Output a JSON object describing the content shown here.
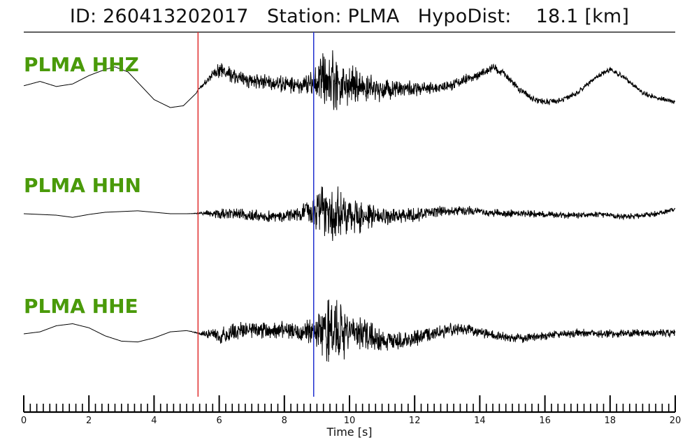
{
  "header": {
    "id_label": "ID:",
    "event_id": "260413202017",
    "station_label": "Station:",
    "station": "PLMA",
    "dist_label": "HypoDist:",
    "dist_value": "18.1",
    "dist_unit": "[km]"
  },
  "colors": {
    "trace": "#000000",
    "label": "#4a9a0a",
    "p_pick": "#e03030",
    "s_pick": "#2030d0",
    "frame": "#000000"
  },
  "chart_data": {
    "type": "line",
    "title": "ID: 260413202017   Station: PLMA   HypoDist:    18.1 [km]",
    "xlabel": "Time [s]",
    "xlim": [
      0,
      20
    ],
    "xticks": [
      0,
      2,
      4,
      6,
      8,
      10,
      12,
      14,
      16,
      18,
      20
    ],
    "minor_tick_step": 0.2,
    "grid": false,
    "picks": [
      {
        "phase": "P",
        "time": 5.35,
        "color": "#e03030"
      },
      {
        "phase": "S",
        "time": 8.9,
        "color": "#2030d0"
      }
    ],
    "series": [
      {
        "name": "PLMA HHZ",
        "x": [
          0,
          0.5,
          1,
          1.5,
          2,
          2.5,
          2.8,
          3.2,
          3.6,
          4,
          4.5,
          4.9,
          5.3,
          5.35,
          5.6,
          5.8,
          6,
          6.3,
          6.6,
          7,
          7.5,
          8,
          8.5,
          8.9,
          9.2,
          9.5,
          9.8,
          10.2,
          10.6,
          11,
          11.5,
          12,
          12.5,
          13,
          13.5,
          14,
          14.4,
          14.8,
          15.2,
          15.6,
          16,
          16.5,
          17,
          17.5,
          18,
          18.5,
          19,
          19.5,
          20
        ],
        "y": [
          0.1,
          0.22,
          0.08,
          0.15,
          0.38,
          0.55,
          0.62,
          0.48,
          0.1,
          -0.28,
          -0.5,
          -0.45,
          -0.1,
          0.0,
          0.2,
          0.45,
          0.55,
          0.45,
          0.3,
          0.25,
          0.2,
          0.15,
          0.1,
          0.2,
          0.3,
          0.25,
          0.1,
          0.1,
          0.05,
          0.0,
          0.05,
          0.0,
          0.02,
          0.1,
          0.25,
          0.4,
          0.6,
          0.4,
          0.0,
          -0.25,
          -0.35,
          -0.3,
          -0.1,
          0.3,
          0.55,
          0.3,
          -0.1,
          -0.25,
          -0.35
        ],
        "noise": [
          0,
          0,
          0,
          0,
          0,
          0,
          0,
          0,
          0,
          0,
          0,
          0,
          0,
          0.02,
          0.12,
          0.15,
          0.24,
          0.27,
          0.25,
          0.25,
          0.25,
          0.27,
          0.24,
          0.45,
          0.9,
          1.0,
          0.7,
          0.55,
          0.45,
          0.35,
          0.3,
          0.25,
          0.2,
          0.18,
          0.17,
          0.15,
          0.14,
          0.12,
          0.12,
          0.11,
          0.1,
          0.1,
          0.09,
          0.09,
          0.08,
          0.08,
          0.08,
          0.08,
          0.08
        ]
      },
      {
        "name": "PLMA HHN",
        "x": [
          0,
          0.5,
          1,
          1.5,
          2,
          2.5,
          3,
          3.5,
          4,
          4.5,
          5,
          5.35,
          5.7,
          6,
          6.5,
          7,
          7.5,
          8,
          8.5,
          8.9,
          9.2,
          9.5,
          9.8,
          10.2,
          10.6,
          11,
          11.5,
          12,
          12.5,
          13,
          13.5,
          14,
          14.5,
          15,
          15.5,
          16,
          16.5,
          17,
          17.5,
          18,
          18.5,
          19,
          19.5,
          20
        ],
        "y": [
          0.0,
          -0.02,
          -0.04,
          -0.1,
          -0.02,
          0.04,
          0.06,
          0.08,
          0.04,
          0.0,
          0.0,
          0.01,
          0.02,
          0.0,
          0.0,
          -0.04,
          -0.08,
          -0.06,
          0.0,
          0.08,
          0.12,
          0.08,
          0.0,
          -0.04,
          -0.08,
          -0.1,
          -0.08,
          -0.04,
          0.04,
          0.08,
          0.1,
          0.06,
          0.02,
          0.0,
          0.0,
          -0.02,
          -0.04,
          -0.04,
          -0.02,
          -0.04,
          -0.08,
          -0.06,
          0.02,
          0.12
        ],
        "noise": [
          0,
          0,
          0,
          0,
          0,
          0,
          0,
          0,
          0,
          0,
          0,
          0.02,
          0.1,
          0.16,
          0.17,
          0.2,
          0.18,
          0.18,
          0.24,
          0.5,
          0.9,
          1.0,
          0.75,
          0.55,
          0.4,
          0.3,
          0.25,
          0.22,
          0.18,
          0.17,
          0.15,
          0.14,
          0.13,
          0.12,
          0.12,
          0.11,
          0.11,
          0.1,
          0.1,
          0.1,
          0.09,
          0.09,
          0.09,
          0.09
        ]
      },
      {
        "name": "PLMA HHE",
        "x": [
          0,
          0.5,
          1,
          1.5,
          2,
          2.5,
          3,
          3.5,
          4,
          4.5,
          5,
          5.35,
          5.7,
          6,
          6.5,
          7,
          7.5,
          8,
          8.5,
          8.9,
          9.2,
          9.5,
          9.8,
          10.2,
          10.6,
          11,
          11.5,
          12,
          12.5,
          13,
          13.5,
          14,
          14.5,
          15,
          15.5,
          16,
          16.5,
          17,
          17.5,
          18,
          18.5,
          19,
          19.5,
          20
        ],
        "y": [
          0.0,
          0.05,
          0.2,
          0.25,
          0.15,
          -0.05,
          -0.18,
          -0.2,
          -0.1,
          0.05,
          0.08,
          0.02,
          -0.02,
          -0.05,
          0.05,
          0.12,
          0.1,
          0.1,
          0.02,
          0.05,
          0.1,
          0.1,
          0.05,
          0.0,
          -0.05,
          -0.15,
          -0.2,
          -0.1,
          0.0,
          0.1,
          0.12,
          0.05,
          -0.05,
          -0.1,
          -0.1,
          -0.05,
          0.0,
          0.02,
          0.02,
          0.0,
          0.0,
          0.02,
          0.02,
          0.02
        ],
        "noise": [
          0,
          0,
          0,
          0,
          0,
          0,
          0,
          0,
          0,
          0,
          0,
          0.02,
          0.15,
          0.22,
          0.26,
          0.26,
          0.26,
          0.24,
          0.26,
          0.5,
          0.85,
          1.0,
          0.8,
          0.6,
          0.42,
          0.3,
          0.25,
          0.22,
          0.2,
          0.18,
          0.16,
          0.15,
          0.14,
          0.13,
          0.13,
          0.12,
          0.12,
          0.12,
          0.12,
          0.12,
          0.11,
          0.11,
          0.11,
          0.11
        ]
      }
    ]
  }
}
